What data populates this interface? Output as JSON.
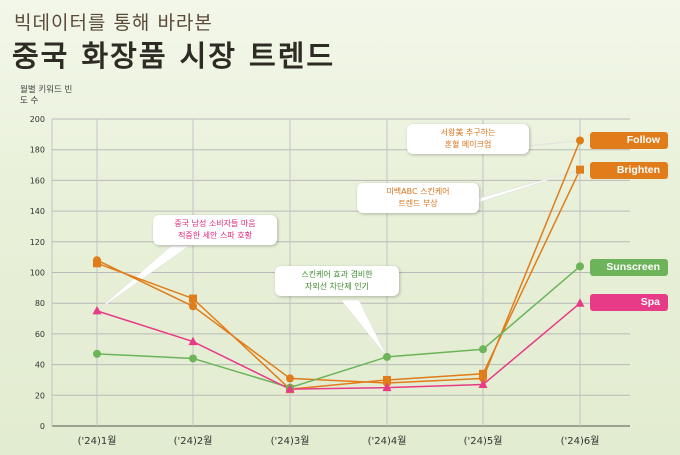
{
  "header": {
    "subtitle": "빅데이터를 통해 바라본",
    "title": "중국 화장품 시장 트렌드"
  },
  "chart_data": {
    "type": "line",
    "ylabel": "월별 키워드 빈도 수",
    "ylim": [
      0,
      200
    ],
    "yticks": [
      0,
      20,
      40,
      60,
      80,
      100,
      120,
      140,
      160,
      180,
      200
    ],
    "grid": true,
    "legend_position": "right",
    "categories": [
      "('24)1월",
      "('24)2월",
      "('24)3월",
      "('24)4월",
      "('24)5월",
      "('24)6월"
    ],
    "series": [
      {
        "name": "Follow",
        "color": "#e07d1a",
        "marker": "circle",
        "values": [
          108,
          78,
          31,
          28,
          31,
          186
        ]
      },
      {
        "name": "Brighten",
        "color": "#e07d1a",
        "marker": "square",
        "values": [
          106,
          83,
          24,
          30,
          34,
          167
        ]
      },
      {
        "name": "Sunscreen",
        "color": "#6cb35a",
        "marker": "circle",
        "values": [
          47,
          44,
          25,
          45,
          50,
          104
        ]
      },
      {
        "name": "Spa",
        "color": "#e83b87",
        "marker": "triangle",
        "values": [
          75,
          55,
          24,
          25,
          27,
          80
        ]
      }
    ],
    "annotations": [
      {
        "text": [
          "서왕美 추구하는",
          "혼혈 메이크업"
        ],
        "series": "Follow",
        "point": 5,
        "color": "#d9731a"
      },
      {
        "text": [
          "미백ABC 스킨케어",
          "트렌드 부상"
        ],
        "series": "Brighten",
        "point": 5,
        "color": "#d9731a"
      },
      {
        "text": [
          "중국 남성 소비자들 마음",
          "적중한 세안 스파 호황"
        ],
        "series": "Spa",
        "point": 0,
        "color": "#e0287a"
      },
      {
        "text": [
          "스킨케어 효과 겸비한",
          "자외선 차단제 인기"
        ],
        "series": "Sunscreen",
        "point": 3,
        "color": "#3d8a30"
      }
    ]
  }
}
